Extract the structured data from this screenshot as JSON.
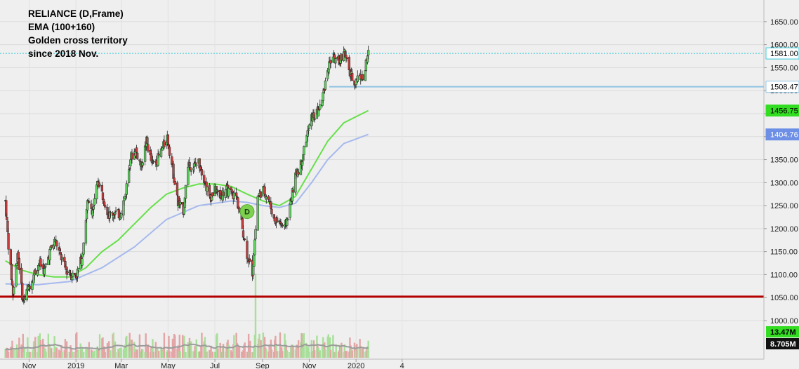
{
  "chart_data": {
    "type": "candlestick",
    "title_lines": [
      "RELIANCE (D,Frame)",
      "EMA (100+160)",
      "Golden cross territory",
      "since 2018 Nov."
    ],
    "y_ticks": [
      1000,
      1050,
      1100,
      1150,
      1200,
      1250,
      1300,
      1350,
      1400,
      1450,
      1500,
      1550,
      1600,
      1650
    ],
    "ylim": [
      985,
      1670
    ],
    "x_ticks": [
      "Nov",
      "2019",
      "Mar",
      "May",
      "Jul",
      "Sep",
      "Nov",
      "2020",
      "4"
    ],
    "colors": {
      "up": "#5fd35f",
      "down": "#c63d3d",
      "ema100": "#66e04a",
      "ema160": "#a6b9ee",
      "support": "#b50000",
      "resistance": "#8fc3e3",
      "last_price_line": "#33c8d8",
      "volume_up": "#a8df9a",
      "volume_down": "#e3a5a5",
      "volume_ma": "#9c9c9c"
    },
    "horizontal_levels": {
      "support": 1052,
      "resistance": 1508.47,
      "last_price": 1581.0
    },
    "price_badges": [
      {
        "label": "1581.00",
        "value": 1581.0,
        "style": "last"
      },
      {
        "label": "1508.47",
        "value": 1508.47,
        "style": "resistance"
      },
      {
        "label": "1456.75",
        "value": 1456.75,
        "style": "ema100"
      },
      {
        "label": "1404.76",
        "value": 1404.76,
        "style": "ema160"
      }
    ],
    "volume_badges": [
      "13.47M",
      "8.705M"
    ],
    "marker": {
      "label": "D",
      "x_date": "2019-08-12",
      "y": 1237
    },
    "price_path": [
      [
        "2018-10-01",
        1260
      ],
      [
        "2018-10-05",
        1165
      ],
      [
        "2018-10-11",
        1058
      ],
      [
        "2018-10-17",
        1150
      ],
      [
        "2018-10-24",
        1040
      ],
      [
        "2018-10-31",
        1070
      ],
      [
        "2018-11-07",
        1100
      ],
      [
        "2018-11-14",
        1125
      ],
      [
        "2018-11-21",
        1108
      ],
      [
        "2018-11-28",
        1150
      ],
      [
        "2018-12-05",
        1175
      ],
      [
        "2018-12-12",
        1140
      ],
      [
        "2018-12-19",
        1110
      ],
      [
        "2018-12-26",
        1100
      ],
      [
        "2019-01-02",
        1100
      ],
      [
        "2019-01-09",
        1140
      ],
      [
        "2019-01-16",
        1255
      ],
      [
        "2019-01-23",
        1240
      ],
      [
        "2019-01-30",
        1305
      ],
      [
        "2019-02-06",
        1265
      ],
      [
        "2019-02-13",
        1230
      ],
      [
        "2019-02-20",
        1235
      ],
      [
        "2019-02-27",
        1230
      ],
      [
        "2019-03-06",
        1270
      ],
      [
        "2019-03-13",
        1355
      ],
      [
        "2019-03-20",
        1370
      ],
      [
        "2019-03-27",
        1335
      ],
      [
        "2019-04-03",
        1390
      ],
      [
        "2019-04-10",
        1340
      ],
      [
        "2019-04-17",
        1350
      ],
      [
        "2019-04-24",
        1375
      ],
      [
        "2019-04-30",
        1400
      ],
      [
        "2019-05-07",
        1330
      ],
      [
        "2019-05-14",
        1255
      ],
      [
        "2019-05-21",
        1240
      ],
      [
        "2019-05-27",
        1340
      ],
      [
        "2019-06-03",
        1335
      ],
      [
        "2019-06-10",
        1345
      ],
      [
        "2019-06-17",
        1310
      ],
      [
        "2019-06-24",
        1265
      ],
      [
        "2019-07-01",
        1285
      ],
      [
        "2019-07-08",
        1270
      ],
      [
        "2019-07-15",
        1285
      ],
      [
        "2019-07-22",
        1275
      ],
      [
        "2019-07-29",
        1270
      ],
      [
        "2019-08-05",
        1210
      ],
      [
        "2019-08-12",
        1145
      ],
      [
        "2019-08-19",
        1105
      ],
      [
        "2019-08-26",
        1270
      ],
      [
        "2019-09-02",
        1285
      ],
      [
        "2019-09-09",
        1265
      ],
      [
        "2019-09-16",
        1220
      ],
      [
        "2019-09-23",
        1215
      ],
      [
        "2019-09-30",
        1200
      ],
      [
        "2019-10-07",
        1250
      ],
      [
        "2019-10-14",
        1315
      ],
      [
        "2019-10-21",
        1340
      ],
      [
        "2019-10-28",
        1395
      ],
      [
        "2019-11-04",
        1440
      ],
      [
        "2019-11-11",
        1450
      ],
      [
        "2019-11-18",
        1480
      ],
      [
        "2019-11-25",
        1550
      ],
      [
        "2019-12-02",
        1575
      ],
      [
        "2019-12-09",
        1555
      ],
      [
        "2019-12-16",
        1590
      ],
      [
        "2019-12-23",
        1540
      ],
      [
        "2019-12-30",
        1520
      ],
      [
        "2020-01-06",
        1535
      ],
      [
        "2020-01-10",
        1525
      ],
      [
        "2020-01-17",
        1581
      ]
    ],
    "ema100_path": [
      [
        "2018-10-01",
        1130
      ],
      [
        "2018-10-22",
        1110
      ],
      [
        "2018-11-12",
        1100
      ],
      [
        "2018-12-03",
        1095
      ],
      [
        "2018-12-24",
        1095
      ],
      [
        "2019-01-14",
        1115
      ],
      [
        "2019-02-04",
        1150
      ],
      [
        "2019-02-25",
        1175
      ],
      [
        "2019-03-18",
        1210
      ],
      [
        "2019-04-08",
        1245
      ],
      [
        "2019-04-29",
        1275
      ],
      [
        "2019-05-20",
        1288
      ],
      [
        "2019-06-10",
        1297
      ],
      [
        "2019-07-01",
        1297
      ],
      [
        "2019-07-22",
        1292
      ],
      [
        "2019-08-12",
        1275
      ],
      [
        "2019-09-02",
        1260
      ],
      [
        "2019-09-23",
        1250
      ],
      [
        "2019-10-14",
        1270
      ],
      [
        "2019-11-04",
        1330
      ],
      [
        "2019-11-25",
        1390
      ],
      [
        "2019-12-16",
        1430
      ],
      [
        "2020-01-17",
        1456.75
      ]
    ],
    "ema160_path": [
      [
        "2018-10-01",
        1080
      ],
      [
        "2018-11-12",
        1078
      ],
      [
        "2018-12-24",
        1085
      ],
      [
        "2019-02-04",
        1115
      ],
      [
        "2019-03-18",
        1160
      ],
      [
        "2019-04-29",
        1220
      ],
      [
        "2019-06-10",
        1250
      ],
      [
        "2019-07-22",
        1260
      ],
      [
        "2019-08-12",
        1257
      ],
      [
        "2019-09-02",
        1250
      ],
      [
        "2019-09-23",
        1246
      ],
      [
        "2019-10-14",
        1255
      ],
      [
        "2019-11-04",
        1300
      ],
      [
        "2019-11-25",
        1350
      ],
      [
        "2019-12-16",
        1385
      ],
      [
        "2020-01-17",
        1404.76
      ]
    ]
  }
}
